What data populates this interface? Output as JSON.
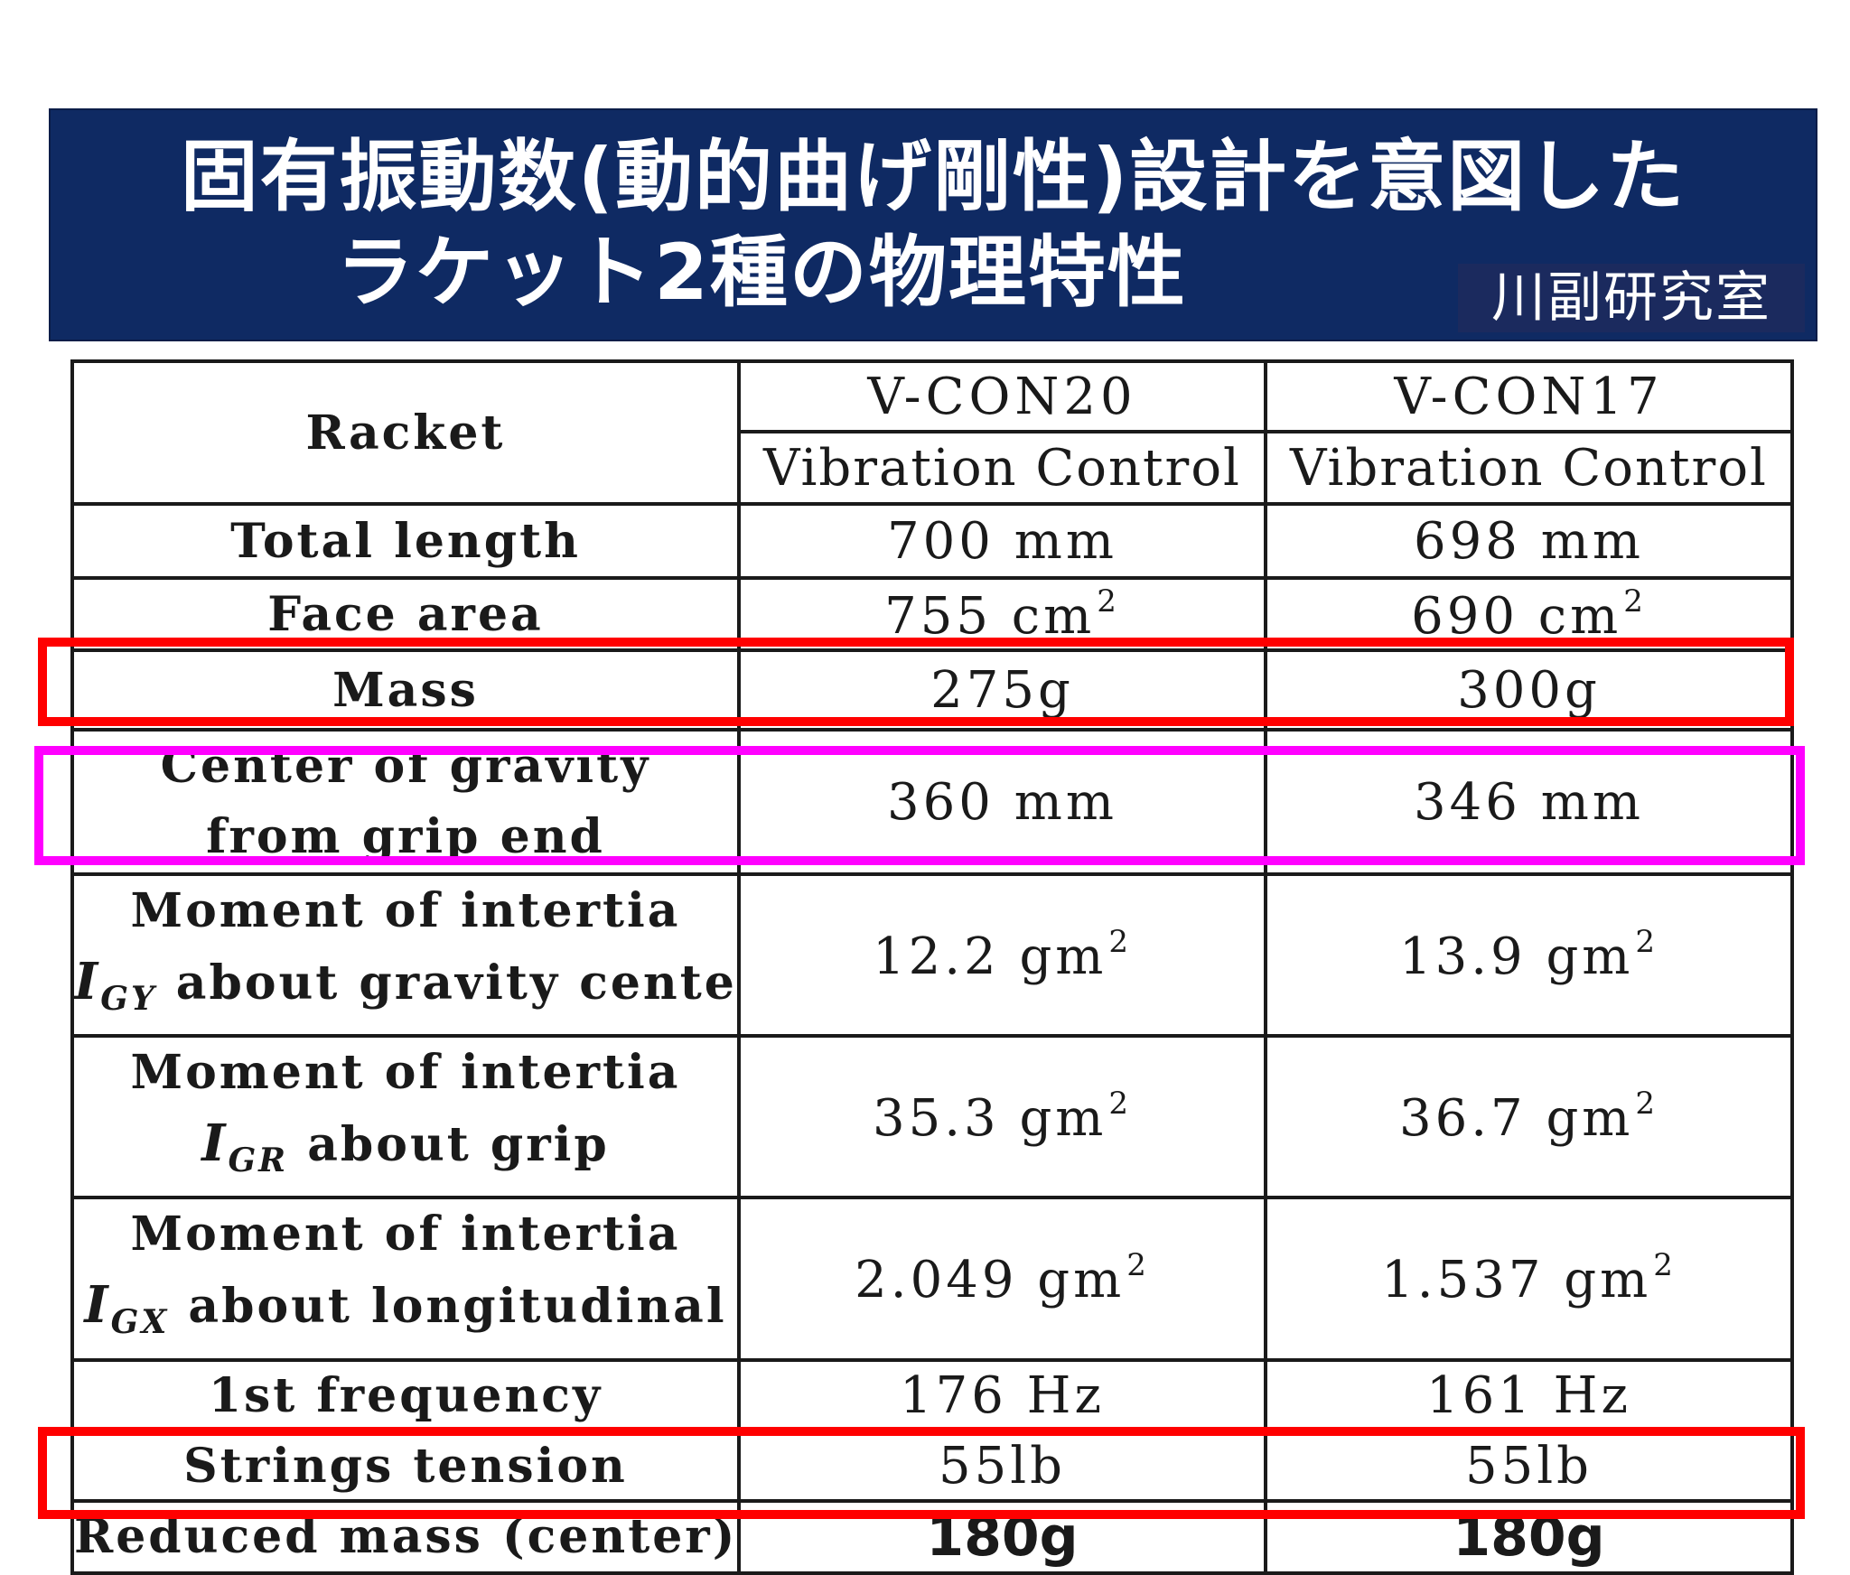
{
  "banner": {
    "title_line1": "固有振動数(動的曲げ剛性)設計を意図した",
    "title_line2": "ラケット2種の物理特性",
    "lab_label": "川副研究室",
    "background_color": "#0f2a63"
  },
  "table": {
    "header": {
      "row_label": "Racket",
      "models": [
        "V-CON20",
        "V-CON17"
      ],
      "subtitles": [
        "Vibration Control",
        "Vibration Control"
      ]
    },
    "rows": {
      "total_length": {
        "label": "Total length",
        "v20": "700 mm",
        "v17": "698 mm"
      },
      "face_area": {
        "label": "Face area",
        "v20": "755 cm",
        "v17": "690 cm",
        "unit_exp": "2"
      },
      "mass": {
        "label": "Mass",
        "v20": "275g",
        "v17": "300g"
      },
      "cog": {
        "label_line1": "Center of gravity",
        "label_line2": "from grip end",
        "v20": "360 mm",
        "v17": "346 mm"
      },
      "igy": {
        "label_line1": "Moment of intertia",
        "symbol": "I",
        "subscript": "GY",
        "label_rest": "about gravity center",
        "v20": "12.2 gm",
        "v17": "13.9 gm",
        "unit_exp": "2"
      },
      "igr": {
        "label_line1": "Moment of intertia",
        "symbol": "I",
        "subscript": "GR",
        "label_rest": "about grip",
        "v20": "35.3 gm",
        "v17": "36.7 gm",
        "unit_exp": "2"
      },
      "igx": {
        "label_line1": "Moment of intertia",
        "symbol": "I",
        "subscript": "GX",
        "label_rest": "about longitudinal",
        "v20": "2.049 gm",
        "v17": "1.537 gm",
        "unit_exp": "2"
      },
      "frequency": {
        "label": "1st frequency",
        "v20": "176 Hz",
        "v17": "161 Hz"
      },
      "tension": {
        "label": "Strings tension",
        "v20": "55lb",
        "v17": "55lb"
      },
      "reduced_mass": {
        "label": "Reduced mass (center)",
        "v20": "180g",
        "v17": "180g"
      }
    }
  },
  "highlights": {
    "red_color": "#ff0000",
    "magenta_color": "#ff00ff"
  }
}
